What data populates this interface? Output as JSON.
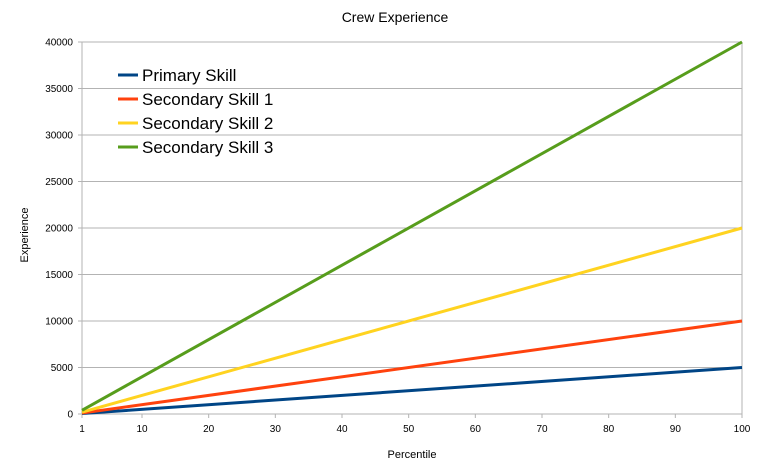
{
  "chart_data": {
    "type": "line",
    "title": "Crew Experience",
    "xlabel": "Percentile",
    "ylabel": "Experience",
    "x": [
      1,
      100
    ],
    "xticks": [
      1,
      10,
      20,
      30,
      40,
      50,
      60,
      70,
      80,
      90,
      100
    ],
    "xlim": [
      1,
      100
    ],
    "yticks": [
      0,
      5000,
      10000,
      15000,
      20000,
      25000,
      30000,
      35000,
      40000
    ],
    "ylim": [
      0,
      40000
    ],
    "grid": "horizontal",
    "legend_position": "top-left",
    "series": [
      {
        "name": "Primary Skill",
        "color": "#004586",
        "values": [
          50,
          5000
        ]
      },
      {
        "name": "Secondary Skill 1",
        "color": "#ff420e",
        "values": [
          100,
          10000
        ]
      },
      {
        "name": "Secondary Skill 2",
        "color": "#ffd320",
        "values": [
          200,
          20000
        ]
      },
      {
        "name": "Secondary Skill 3",
        "color": "#579d1c",
        "values": [
          400,
          40000
        ]
      }
    ]
  }
}
